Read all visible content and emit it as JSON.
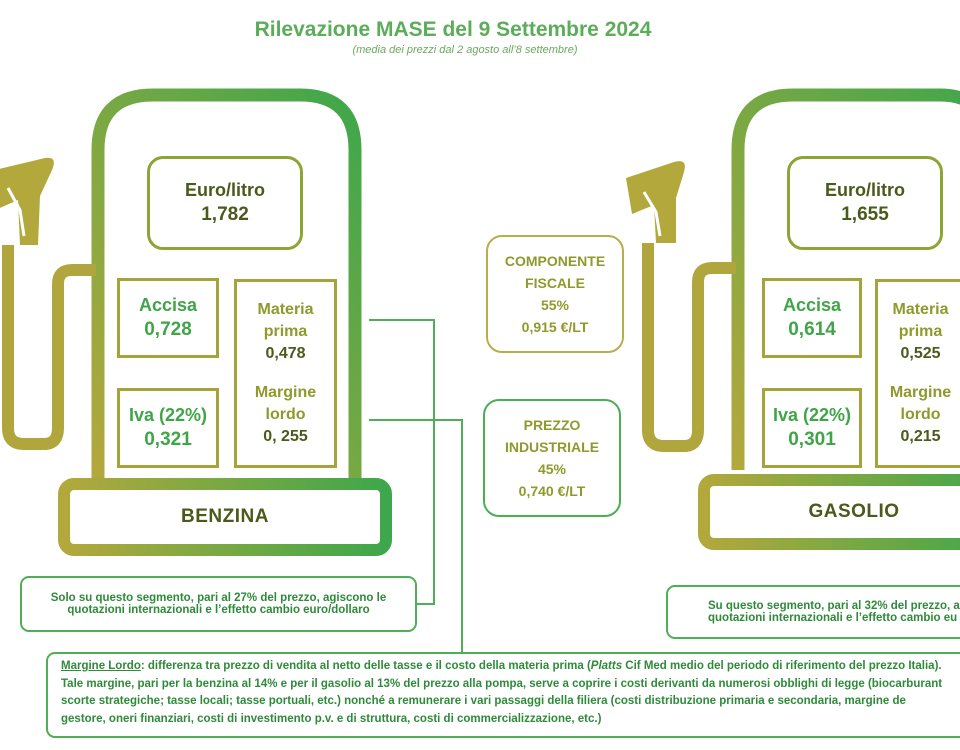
{
  "header": {
    "title": "Rilevazione MASE del 9 Settembre 2024",
    "subtitle": "(media dei prezzi dal 2 agosto all’8 settembre)"
  },
  "benzina": {
    "price_label": "Euro/litro",
    "price_value": "1,782",
    "accisa_label": "Accisa",
    "accisa_value": "0,728",
    "iva_label": "Iva (22%)",
    "iva_value": "0,321",
    "materia_label_1": "Materia",
    "materia_label_2": "prima",
    "materia_value": "0,478",
    "margine_label_1": "Margine",
    "margine_label_2": "lordo",
    "margine_value": "0, 255",
    "name": "BENZINA",
    "note_line1": "Solo su questo segmento, pari al 27% del prezzo, agiscono le",
    "note_line2": "quotazioni internazionali e l’effetto cambio euro/dollaro"
  },
  "gasolio": {
    "price_label": "Euro/litro",
    "price_value": "1,655",
    "accisa_label": "Accisa",
    "accisa_value": "0,614",
    "iva_label": "Iva (22%)",
    "iva_value": "0,301",
    "materia_label_1": "Materia",
    "materia_label_2": "prima",
    "materia_value": "0,525",
    "margine_label_1": "Margine",
    "margine_label_2": "lordo",
    "margine_value": "0,215",
    "name": "GASOLIO",
    "note_line1": "Su questo segmento, pari al 32% del prezzo, a",
    "note_line2": "quotazioni internazionali e l’effetto cambio eu"
  },
  "componente_fiscale": {
    "line1": "COMPONENTE",
    "line2": "FISCALE",
    "percent": "55%",
    "amount": "0,915 €/LT"
  },
  "prezzo_industriale": {
    "line1": "PREZZO",
    "line2": "INDUSTRIALE",
    "percent": "45%",
    "amount": "0,740 €/LT"
  },
  "bottom_note": {
    "term": "Margine Lordo",
    "line1_a": ": differenza tra prezzo di vendita al netto delle tasse e il costo della materia prima (",
    "line1_italic": "Platts",
    "line1_b": " Cif Med medio del periodo di riferimento del prezzo Italia).",
    "line2": "Tale margine, pari per la benzina al 14% e per il gasolio al 13% del prezzo alla pompa, serve a coprire i costi derivanti da numerosi obblighi di legge (biocarburant",
    "line3": "scorte strategiche; tasse locali; tasse portuali, etc.) nonché a remunerare i vari passaggi della filiera (costi distribuzione primaria e secondaria, margine de",
    "line4": "gestore, oneri finanziari, costi di investimento p.v. e di struttura, costi di commercializzazione, etc.)"
  },
  "colors": {
    "olive": "#a5a33a",
    "green": "#3fa548",
    "title_green": "#5cad5a"
  }
}
